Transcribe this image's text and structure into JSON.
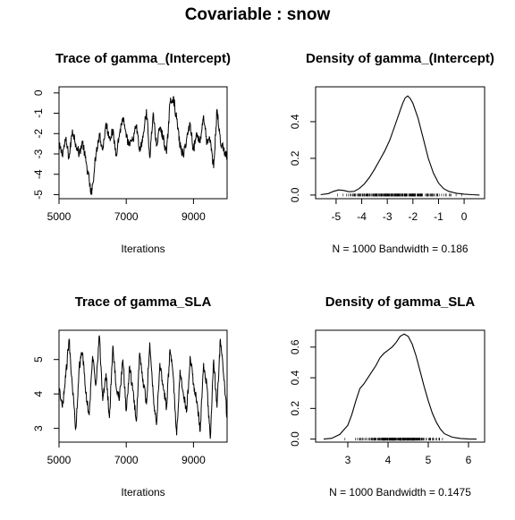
{
  "title": "Covariable : snow",
  "chart_data": [
    {
      "type": "line",
      "title": "Trace of gamma_(Intercept)",
      "xlabel": "Iterations",
      "ylabel": "",
      "xlim": [
        5000,
        10000
      ],
      "ylim": [
        -5.2,
        0.3
      ],
      "xticks": [
        5000,
        7000,
        9000
      ],
      "yticks": [
        0,
        -1,
        -2,
        -3,
        -4,
        -5
      ],
      "series": [
        {
          "x": [
            5000,
            5100,
            5200,
            5300,
            5400,
            5500,
            5600,
            5700,
            5800,
            5900,
            5950,
            6000,
            6100,
            6200,
            6300,
            6400,
            6500,
            6600,
            6700,
            6800,
            6900,
            7000,
            7100,
            7200,
            7300,
            7400,
            7500,
            7600,
            7700,
            7800,
            7900,
            8000,
            8100,
            8200,
            8300,
            8400,
            8500,
            8600,
            8700,
            8800,
            8900,
            9000,
            9100,
            9200,
            9300,
            9400,
            9500,
            9600,
            9700,
            9800,
            9900,
            10000
          ],
          "y": [
            -2.6,
            -3.0,
            -2.3,
            -3.2,
            -1.8,
            -2.5,
            -3.0,
            -2.4,
            -3.4,
            -4.3,
            -5.0,
            -4.5,
            -3.0,
            -2.0,
            -2.8,
            -1.5,
            -2.2,
            -1.9,
            -3.0,
            -2.0,
            -1.2,
            -2.2,
            -2.6,
            -2.3,
            -1.6,
            -2.9,
            -2.2,
            -0.8,
            -3.2,
            -1.0,
            -2.6,
            -1.7,
            -2.2,
            -3.0,
            -0.5,
            -0.2,
            -1.3,
            -2.6,
            -3.1,
            -2.2,
            -1.5,
            -2.8,
            -2.0,
            -2.4,
            -1.1,
            -2.5,
            -2.3,
            -3.7,
            -0.8,
            -2.4,
            -2.8,
            -3.2
          ]
        }
      ]
    },
    {
      "type": "area",
      "title": "Density of gamma_(Intercept)",
      "xlabel": "N = 1000   Bandwidth = 0.186",
      "ylabel": "",
      "xlim": [
        -5.8,
        0.8
      ],
      "ylim": [
        -0.02,
        0.59
      ],
      "xticks": [
        -5,
        -4,
        -3,
        -2,
        -1,
        0
      ],
      "yticks": [
        0.0,
        0.2,
        0.4
      ],
      "series": [
        {
          "x": [
            -5.6,
            -5.3,
            -5.1,
            -4.9,
            -4.7,
            -4.5,
            -4.3,
            -4.1,
            -3.9,
            -3.7,
            -3.5,
            -3.3,
            -3.1,
            -2.9,
            -2.7,
            -2.5,
            -2.4,
            -2.3,
            -2.2,
            -2.1,
            -2.0,
            -1.8,
            -1.6,
            -1.4,
            -1.2,
            -1.0,
            -0.8,
            -0.6,
            -0.3,
            0.0,
            0.3,
            0.6
          ],
          "y": [
            0.002,
            0.008,
            0.02,
            0.028,
            0.025,
            0.018,
            0.02,
            0.035,
            0.06,
            0.095,
            0.14,
            0.19,
            0.24,
            0.3,
            0.38,
            0.46,
            0.5,
            0.53,
            0.54,
            0.525,
            0.5,
            0.42,
            0.31,
            0.2,
            0.12,
            0.065,
            0.035,
            0.02,
            0.01,
            0.005,
            0.002,
            0.0
          ]
        }
      ],
      "rug_range": [
        -5.4,
        0.2
      ]
    },
    {
      "type": "line",
      "title": "Trace of gamma_SLA",
      "xlabel": "Iterations",
      "ylabel": "",
      "xlim": [
        5000,
        10000
      ],
      "ylim": [
        2.6,
        5.85
      ],
      "xticks": [
        5000,
        7000,
        9000
      ],
      "yticks": [
        3.0,
        4.0,
        5.0
      ],
      "series": [
        {
          "x": [
            5000,
            5100,
            5200,
            5300,
            5400,
            5500,
            5600,
            5700,
            5800,
            5900,
            6000,
            6100,
            6200,
            6300,
            6400,
            6500,
            6600,
            6700,
            6800,
            6900,
            7000,
            7100,
            7200,
            7300,
            7400,
            7500,
            7600,
            7700,
            7800,
            7900,
            8000,
            8100,
            8200,
            8300,
            8400,
            8500,
            8600,
            8700,
            8800,
            8900,
            9000,
            9100,
            9200,
            9300,
            9400,
            9500,
            9600,
            9700,
            9800,
            9900,
            10000
          ],
          "y": [
            4.1,
            3.6,
            4.5,
            5.6,
            4.2,
            3.0,
            4.8,
            5.2,
            4.0,
            3.4,
            5.1,
            4.3,
            5.7,
            3.8,
            4.6,
            3.3,
            5.4,
            4.2,
            3.9,
            5.0,
            3.5,
            4.8,
            4.1,
            3.2,
            5.2,
            4.4,
            3.7,
            5.5,
            4.0,
            3.1,
            4.9,
            4.2,
            3.6,
            5.3,
            4.5,
            2.8,
            4.7,
            4.0,
            3.5,
            5.1,
            4.3,
            3.8,
            2.9,
            4.9,
            4.2,
            2.7,
            5.0,
            3.6,
            5.6,
            4.5,
            3.3
          ]
        }
      ]
    },
    {
      "type": "area",
      "title": "Density of gamma_SLA",
      "xlabel": "N = 1000   Bandwidth = 0.1475",
      "ylabel": "",
      "xlim": [
        2.2,
        6.4
      ],
      "ylim": [
        -0.02,
        0.71
      ],
      "xticks": [
        3,
        4,
        5,
        6
      ],
      "yticks": [
        0.0,
        0.2,
        0.4,
        0.6
      ],
      "series": [
        {
          "x": [
            2.4,
            2.6,
            2.8,
            3.0,
            3.1,
            3.2,
            3.3,
            3.4,
            3.5,
            3.6,
            3.7,
            3.8,
            3.9,
            4.0,
            4.1,
            4.2,
            4.3,
            4.4,
            4.5,
            4.6,
            4.7,
            4.8,
            4.9,
            5.0,
            5.1,
            5.2,
            5.3,
            5.4,
            5.6,
            5.8,
            6.0,
            6.2
          ],
          "y": [
            0.0,
            0.005,
            0.03,
            0.09,
            0.16,
            0.25,
            0.33,
            0.36,
            0.4,
            0.44,
            0.48,
            0.53,
            0.56,
            0.58,
            0.6,
            0.63,
            0.67,
            0.685,
            0.67,
            0.62,
            0.54,
            0.44,
            0.34,
            0.25,
            0.17,
            0.11,
            0.065,
            0.035,
            0.012,
            0.004,
            0.001,
            0.0
          ]
        }
      ],
      "rug_range": [
        2.8,
        5.7
      ]
    }
  ]
}
